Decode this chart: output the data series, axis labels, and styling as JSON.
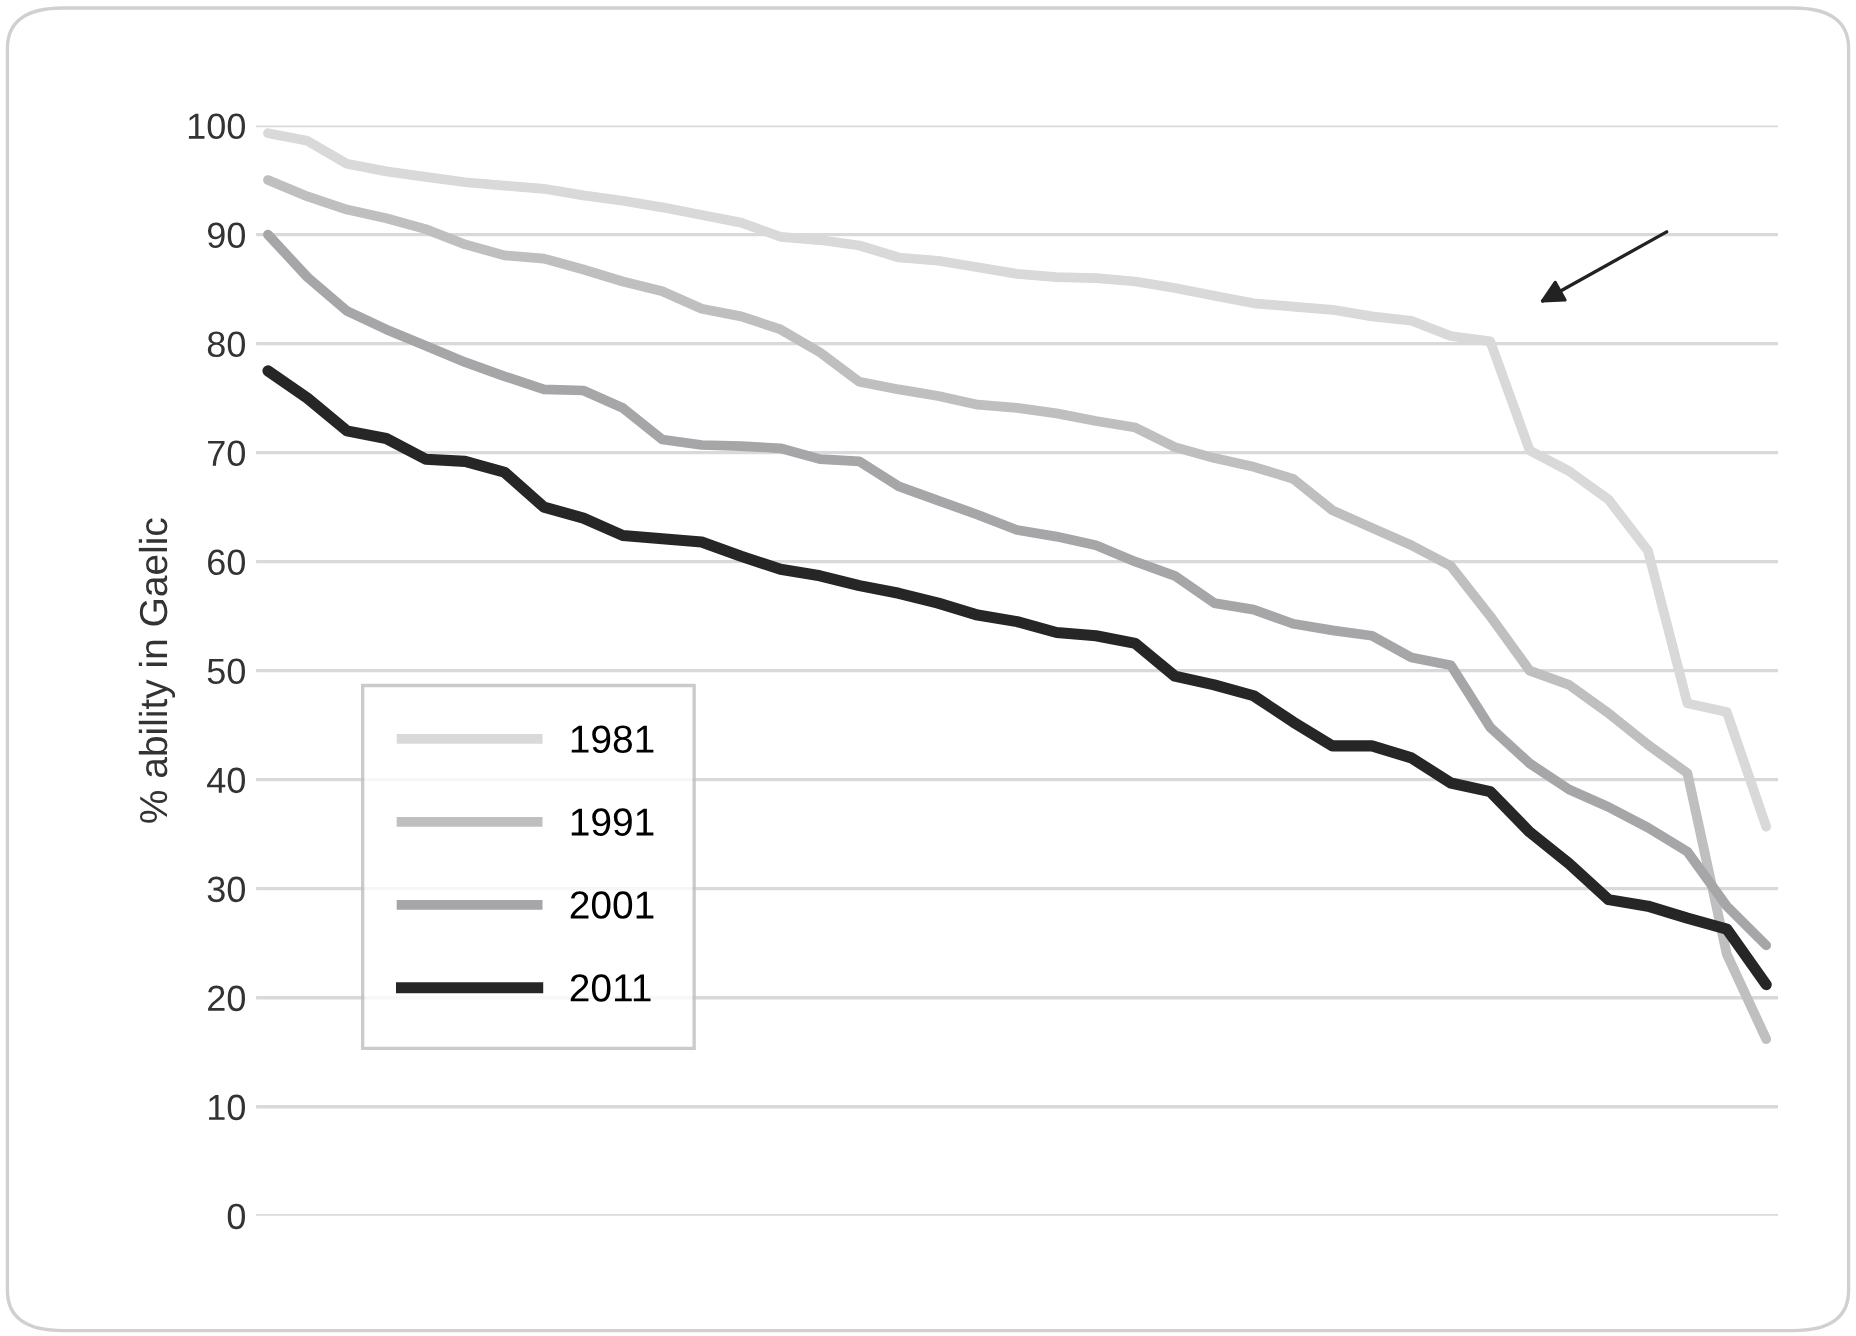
{
  "chart_data": {
    "type": "line",
    "ylabel": "% ability in Gaelic",
    "categories": [
      null,
      null,
      null,
      null,
      null,
      null,
      null,
      null,
      null,
      null,
      null,
      null,
      null,
      null,
      null,
      null,
      null,
      null,
      null,
      null,
      null,
      null,
      null,
      null,
      null,
      null,
      null,
      null,
      null,
      null,
      null,
      null,
      null,
      null,
      null,
      null,
      null,
      null,
      null
    ],
    "series": [
      {
        "name": "1981",
        "color": "#d9d9d9",
        "values": [
          99.3,
          98.6,
          96.5,
          95.8,
          95.3,
          94.8,
          94.5,
          94.2,
          93.6,
          93.1,
          92.5,
          91.8,
          91.1,
          89.8,
          89.5,
          89.0,
          87.9,
          87.6,
          87.0,
          86.4,
          86.1,
          86.0,
          85.7,
          85.1,
          84.4,
          83.7,
          83.4,
          83.1,
          82.5,
          82.1,
          80.7,
          80.2,
          70.2,
          68.3,
          65.7,
          61.0,
          47.0,
          46.2,
          35.7
        ]
      },
      {
        "name": "1991",
        "color": "#bfbfbf",
        "values": [
          95.0,
          93.5,
          92.3,
          91.5,
          90.5,
          89.1,
          88.1,
          87.8,
          86.8,
          85.7,
          84.8,
          83.2,
          82.5,
          81.3,
          79.2,
          76.5,
          75.8,
          75.2,
          74.4,
          74.1,
          73.6,
          72.9,
          72.3,
          70.5,
          69.5,
          68.7,
          67.6,
          64.7,
          63.1,
          61.5,
          59.6,
          55.0,
          50.0,
          48.7,
          46.1,
          43.2,
          40.6,
          24.0,
          16.2
        ]
      },
      {
        "name": "2001",
        "color": "#a6a6a8",
        "values": [
          90.0,
          86.1,
          83.0,
          81.3,
          79.8,
          78.3,
          77.0,
          75.8,
          75.7,
          74.1,
          71.2,
          70.7,
          70.6,
          70.4,
          69.4,
          69.2,
          66.9,
          65.6,
          64.3,
          62.9,
          62.3,
          61.5,
          60.0,
          58.7,
          56.2,
          55.6,
          54.3,
          53.7,
          53.2,
          51.2,
          50.5,
          44.8,
          41.5,
          39.1,
          37.5,
          35.6,
          33.4,
          28.4,
          24.8
        ]
      },
      {
        "name": "2011",
        "color": "#262626",
        "values": [
          77.5,
          75.0,
          72.0,
          71.3,
          69.4,
          69.2,
          68.2,
          65.0,
          64.0,
          62.4,
          62.1,
          61.8,
          60.5,
          59.3,
          58.7,
          57.8,
          57.1,
          56.2,
          55.1,
          54.5,
          53.5,
          53.2,
          52.5,
          49.5,
          48.7,
          47.7,
          45.3,
          43.1,
          43.1,
          42.0,
          39.7,
          38.9,
          35.2,
          32.3,
          29.0,
          28.4,
          27.3,
          26.3,
          21.2
        ]
      }
    ],
    "ylim": [
      0,
      100
    ],
    "yticks": [
      0,
      10,
      20,
      30,
      40,
      50,
      60,
      70,
      80,
      90,
      100
    ],
    "grid": "y",
    "legend": "left",
    "marker": "none",
    "line_style": "solid",
    "tick_labels": "y"
  }
}
